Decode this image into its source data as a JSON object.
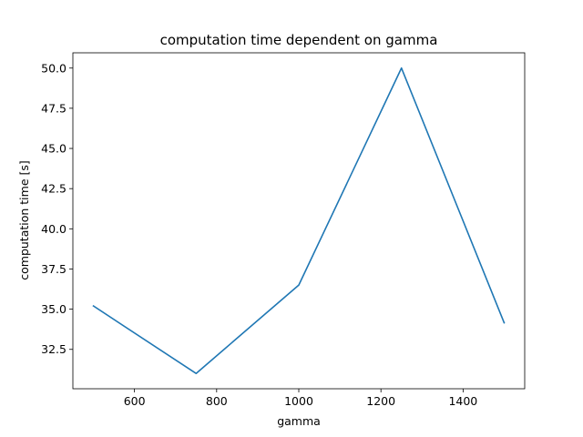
{
  "chart_data": {
    "type": "line",
    "title": "computation time dependent on gamma",
    "xlabel": "gamma",
    "ylabel": "computation time [s]",
    "x": [
      500,
      750,
      1000,
      1250,
      1500
    ],
    "series": [
      {
        "values": [
          35.2,
          31.0,
          36.5,
          50.0,
          34.15
        ],
        "color": "#1f77b4"
      }
    ],
    "xlim": [
      450,
      1550
    ],
    "ylim": [
      30.05,
      50.95
    ],
    "xticks": [
      600,
      800,
      1000,
      1200,
      1400
    ],
    "xtick_labels": [
      "600",
      "800",
      "1000",
      "1200",
      "1400"
    ],
    "yticks": [
      32.5,
      35.0,
      37.5,
      40.0,
      42.5,
      45.0,
      47.5,
      50.0
    ],
    "ytick_labels": [
      "32.5",
      "35.0",
      "37.5",
      "40.0",
      "42.5",
      "45.0",
      "47.5",
      "50.0"
    ],
    "grid": false,
    "legend": "none"
  }
}
